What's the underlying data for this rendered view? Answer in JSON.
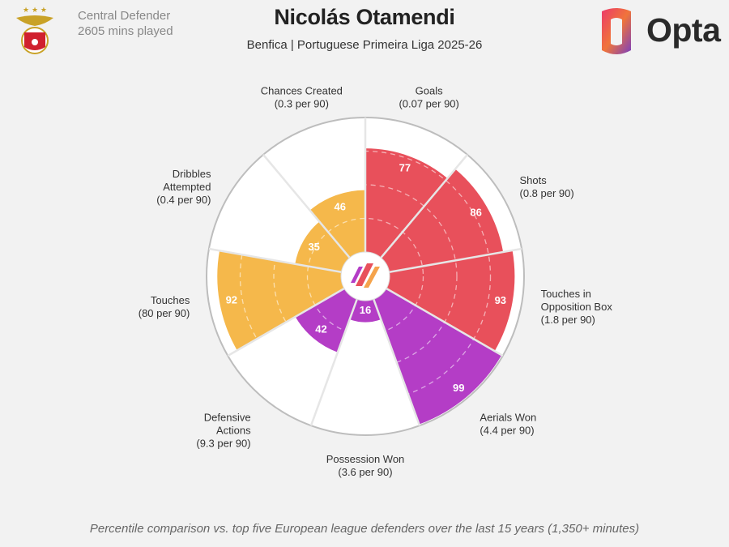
{
  "header": {
    "role": "Central Defender",
    "minutes": "2605 mins played",
    "player": "Nicolás Otamendi",
    "context": "Benfica | Portuguese Primeira Liga 2025-26",
    "brand": "Opta"
  },
  "footer": "Percentile comparison vs. top five European league defenders over the last 15 years (1,350+ minutes)",
  "colors": {
    "attacking": "#e8505b",
    "defending": "#b43dc6",
    "possession": "#f5b84b",
    "background": "#f2f2f2"
  },
  "chart_data": {
    "type": "polar-bar",
    "rmax": 100,
    "categories": [
      {
        "name": "Goals",
        "rate": "(0.07 per 90)",
        "value": 77,
        "group": "attacking"
      },
      {
        "name": "Shots",
        "rate": "(0.8 per 90)",
        "value": 86,
        "group": "attacking"
      },
      {
        "name": "Touches in Opposition Box",
        "rate": "(1.8 per 90)",
        "value": 93,
        "group": "attacking"
      },
      {
        "name": "Aerials Won",
        "rate": "(4.4 per 90)",
        "value": 99,
        "group": "defending"
      },
      {
        "name": "Possession Won",
        "rate": "(3.6 per 90)",
        "value": 16,
        "group": "defending"
      },
      {
        "name": "Defensive Actions",
        "rate": "(9.3 per 90)",
        "value": 42,
        "group": "defending"
      },
      {
        "name": "Touches",
        "rate": "(80 per 90)",
        "value": 92,
        "group": "possession"
      },
      {
        "name": "Dribbles Attempted",
        "rate": "(0.4 per 90)",
        "value": 35,
        "group": "possession"
      },
      {
        "name": "Chances Created",
        "rate": "(0.3 per 90)",
        "value": 46,
        "group": "possession"
      }
    ]
  }
}
